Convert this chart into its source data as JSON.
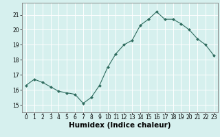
{
  "x": [
    0,
    1,
    2,
    3,
    4,
    5,
    6,
    7,
    8,
    9,
    10,
    11,
    12,
    13,
    14,
    15,
    16,
    17,
    18,
    19,
    20,
    21,
    22,
    23
  ],
  "y": [
    16.3,
    16.7,
    16.5,
    16.2,
    15.9,
    15.8,
    15.7,
    15.1,
    15.5,
    16.3,
    17.5,
    18.4,
    19.0,
    19.3,
    20.3,
    20.7,
    21.2,
    20.7,
    20.7,
    20.4,
    20.0,
    19.4,
    19.0,
    18.3
  ],
  "xlabel": "Humidex (Indice chaleur)",
  "ylim": [
    14.5,
    21.8
  ],
  "xlim": [
    -0.5,
    23.5
  ],
  "yticks": [
    15,
    16,
    17,
    18,
    19,
    20,
    21
  ],
  "xticks": [
    0,
    1,
    2,
    3,
    4,
    5,
    6,
    7,
    8,
    9,
    10,
    11,
    12,
    13,
    14,
    15,
    16,
    17,
    18,
    19,
    20,
    21,
    22,
    23
  ],
  "line_color": "#2e6b5e",
  "marker_color": "#2e6b5e",
  "bg_color": "#d6f0ee",
  "grid_color": "#ffffff",
  "tick_label_fontsize": 5.5,
  "xlabel_fontsize": 7.5
}
